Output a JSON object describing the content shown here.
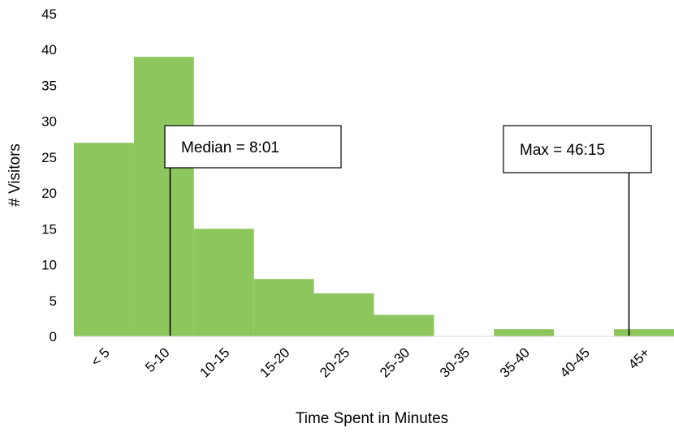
{
  "chart_data": {
    "type": "bar",
    "title": "",
    "xlabel": "Time Spent in Minutes",
    "ylabel": "# Visitors",
    "categories": [
      "< 5",
      "5-10",
      "10-15",
      "15-20",
      "20-25",
      "25-30",
      "30-35",
      "35-40",
      "40-45",
      "45+"
    ],
    "values": [
      27,
      39,
      15,
      8,
      6,
      3,
      0,
      1,
      0,
      1
    ],
    "ylim": [
      0,
      45
    ],
    "yticks": [
      0,
      5,
      10,
      15,
      20,
      25,
      30,
      35,
      40,
      45
    ],
    "bar_color": "#8CC65C",
    "grid": false,
    "legend": "none",
    "annotations": [
      {
        "label": "Median = 8:01",
        "value_minutes": 8.0167
      },
      {
        "label": "Max = 46:15",
        "value_minutes": 46.25
      }
    ]
  }
}
